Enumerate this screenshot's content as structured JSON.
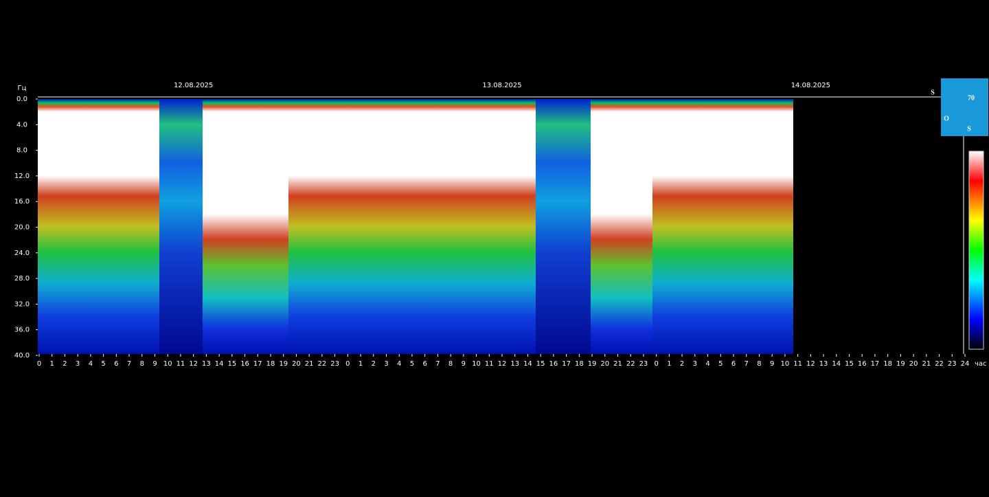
{
  "chart_data": {
    "type": "spectrogram",
    "y_label": "Гц",
    "x_label": "час",
    "y_direction": "down",
    "date_labels": [
      {
        "x": 12,
        "label": "12.08.2025"
      },
      {
        "x": 36,
        "label": "13.08.2025"
      },
      {
        "x": 60,
        "label": "14.08.2025"
      }
    ],
    "xlim": [
      0,
      72
    ],
    "xticks": [
      0,
      1,
      2,
      3,
      4,
      5,
      6,
      7,
      8,
      9,
      10,
      11,
      12,
      13,
      14,
      15,
      16,
      17,
      18,
      19,
      20,
      21,
      22,
      23,
      {
        "value": 24,
        "label": "0"
      },
      {
        "value": 25,
        "label": "1"
      },
      {
        "value": 26,
        "label": "2"
      },
      {
        "value": 27,
        "label": "3"
      },
      {
        "value": 28,
        "label": "4"
      },
      {
        "value": 29,
        "label": "5"
      },
      {
        "value": 30,
        "label": "6"
      },
      {
        "value": 31,
        "label": "7"
      },
      {
        "value": 32,
        "label": "8"
      },
      {
        "value": 33,
        "label": "9"
      },
      {
        "value": 34,
        "label": "10"
      },
      {
        "value": 35,
        "label": "11"
      },
      {
        "value": 36,
        "label": "12"
      },
      {
        "value": 37,
        "label": "13"
      },
      {
        "value": 38,
        "label": "14"
      },
      {
        "value": 39,
        "label": "15"
      },
      {
        "value": 40,
        "label": "16"
      },
      {
        "value": 41,
        "label": "17"
      },
      {
        "value": 42,
        "label": "18"
      },
      {
        "value": 43,
        "label": "19"
      },
      {
        "value": 44,
        "label": "20"
      },
      {
        "value": 45,
        "label": "21"
      },
      {
        "value": 46,
        "label": "22"
      },
      {
        "value": 47,
        "label": "23"
      },
      {
        "value": 48,
        "label": "0"
      },
      {
        "value": 49,
        "label": "1"
      },
      {
        "value": 50,
        "label": "2"
      },
      {
        "value": 51,
        "label": "3"
      },
      {
        "value": 52,
        "label": "4"
      },
      {
        "value": 53,
        "label": "5"
      },
      {
        "value": 54,
        "label": "6"
      },
      {
        "value": 55,
        "label": "7"
      },
      {
        "value": 56,
        "label": "8"
      },
      {
        "value": 57,
        "label": "9"
      },
      {
        "value": 58,
        "label": "10"
      },
      {
        "value": 59,
        "label": "11"
      },
      {
        "value": 60,
        "label": "12"
      },
      {
        "value": 61,
        "label": "13"
      },
      {
        "value": 62,
        "label": "14"
      },
      {
        "value": 63,
        "label": "15"
      },
      {
        "value": 64,
        "label": "16"
      },
      {
        "value": 65,
        "label": "17"
      },
      {
        "value": 66,
        "label": "18"
      },
      {
        "value": 67,
        "label": "19"
      },
      {
        "value": 68,
        "label": "20"
      },
      {
        "value": 69,
        "label": "21"
      },
      {
        "value": 70,
        "label": "22"
      },
      {
        "value": 71,
        "label": "23"
      },
      {
        "value": 72,
        "label": "24"
      }
    ],
    "ylim": [
      0,
      40
    ],
    "yticks": [
      {
        "value": 0,
        "label": "0.0"
      },
      {
        "value": 4,
        "label": "4.0"
      },
      {
        "value": 8,
        "label": "8.0"
      },
      {
        "value": 12,
        "label": "12.0"
      },
      {
        "value": 16,
        "label": "16.0"
      },
      {
        "value": 20,
        "label": "20.0"
      },
      {
        "value": 24,
        "label": "24.0"
      },
      {
        "value": 28,
        "label": "28.0"
      },
      {
        "value": 32,
        "label": "32.0"
      },
      {
        "value": 36,
        "label": "36.0"
      },
      {
        "value": 40,
        "label": "40.0"
      }
    ],
    "logo": {
      "s_top": "S",
      "number": "70",
      "o": "O",
      "s_bottom": "S"
    }
  }
}
